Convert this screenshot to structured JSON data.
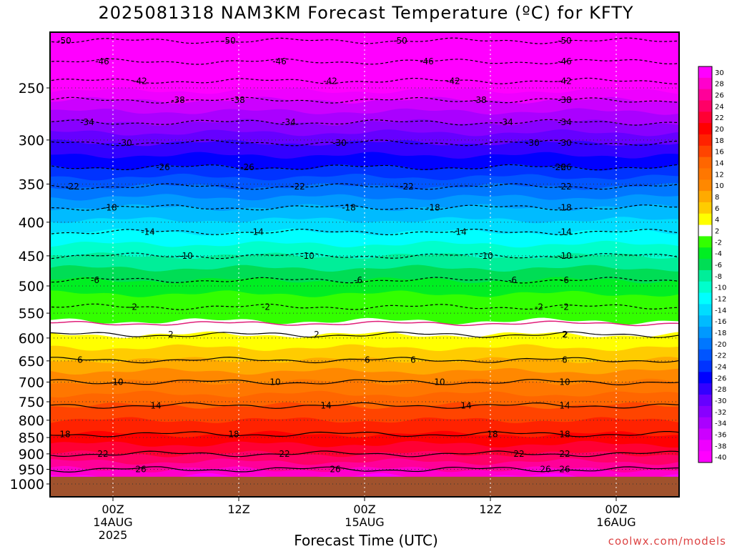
{
  "title": "2025081318 NAM3KM Forecast Temperature (ºC) for KFTY",
  "x_axis_label": "Forecast Time (UTC)",
  "credit": "coolwx.com/models",
  "chart_data": {
    "type": "heatmap",
    "title": "2025081318 NAM3KM Forecast Temperature (ºC) for KFTY",
    "xlabel": "Forecast Time (UTC)",
    "ylabel": "",
    "ylim": [
      1000,
      200
    ],
    "x_ticks": [
      {
        "hours": 6,
        "lines": [
          "00Z",
          "14AUG",
          "2025"
        ]
      },
      {
        "hours": 18,
        "lines": [
          "12Z"
        ]
      },
      {
        "hours": 30,
        "lines": [
          "00Z",
          "15AUG"
        ]
      },
      {
        "hours": 42,
        "lines": [
          "12Z"
        ]
      },
      {
        "hours": 54,
        "lines": [
          "00Z",
          "16AUG"
        ]
      }
    ],
    "x_range_hours": [
      0,
      60
    ],
    "y_ticks": [
      250,
      300,
      350,
      400,
      450,
      500,
      550,
      600,
      650,
      700,
      750,
      800,
      850,
      900,
      950,
      1000
    ],
    "colorbar": {
      "labels": [
        "30",
        "28",
        "26",
        "24",
        "22",
        "20",
        "18",
        "16",
        "14",
        "12",
        "10",
        "8",
        "6",
        "4",
        "2",
        "-2",
        "-4",
        "-6",
        "-8",
        "-10",
        "-12",
        "-14",
        "-16",
        "-18",
        "-20",
        "-22",
        "-24",
        "-26",
        "-28",
        "-30",
        "-32",
        "-34",
        "-36",
        "-38",
        "-40"
      ],
      "colors": [
        "#ff00ff",
        "#ff00cc",
        "#ff0099",
        "#ff0066",
        "#ff0033",
        "#ff0000",
        "#ff2200",
        "#ff4400",
        "#ff6600",
        "#ff7700",
        "#ff8800",
        "#ffaa00",
        "#ffcc00",
        "#ffff00",
        "#ffffff",
        "#33ff00",
        "#00ee22",
        "#00dd55",
        "#00ee99",
        "#00ffcc",
        "#00ffff",
        "#00ddff",
        "#00bbff",
        "#0099ff",
        "#0077ff",
        "#0055ff",
        "#0033ff",
        "#0000ff",
        "#3300ff",
        "#6600ff",
        "#8800ff",
        "#aa00ff",
        "#cc00ff",
        "#ee00ff",
        "#ff00ff"
      ]
    },
    "contours": [
      {
        "value": -50,
        "pressure": 212
      },
      {
        "value": -46,
        "pressure": 228
      },
      {
        "value": -42,
        "pressure": 244
      },
      {
        "value": -38,
        "pressure": 261
      },
      {
        "value": -34,
        "pressure": 282
      },
      {
        "value": -30,
        "pressure": 303
      },
      {
        "value": -26,
        "pressure": 330
      },
      {
        "value": -22,
        "pressure": 353
      },
      {
        "value": -18,
        "pressure": 380
      },
      {
        "value": -14,
        "pressure": 414
      },
      {
        "value": -10,
        "pressure": 450
      },
      {
        "value": -6,
        "pressure": 490
      },
      {
        "value": -2,
        "pressure": 538
      },
      {
        "value": 2,
        "pressure": 593
      },
      {
        "value": 6,
        "pressure": 648
      },
      {
        "value": 10,
        "pressure": 700
      },
      {
        "value": 14,
        "pressure": 760
      },
      {
        "value": 18,
        "pressure": 840
      },
      {
        "value": 22,
        "pressure": 900
      },
      {
        "value": 26,
        "pressure": 950
      }
    ],
    "freezing_level_pressure": 570,
    "surface_pressure": 975
  }
}
